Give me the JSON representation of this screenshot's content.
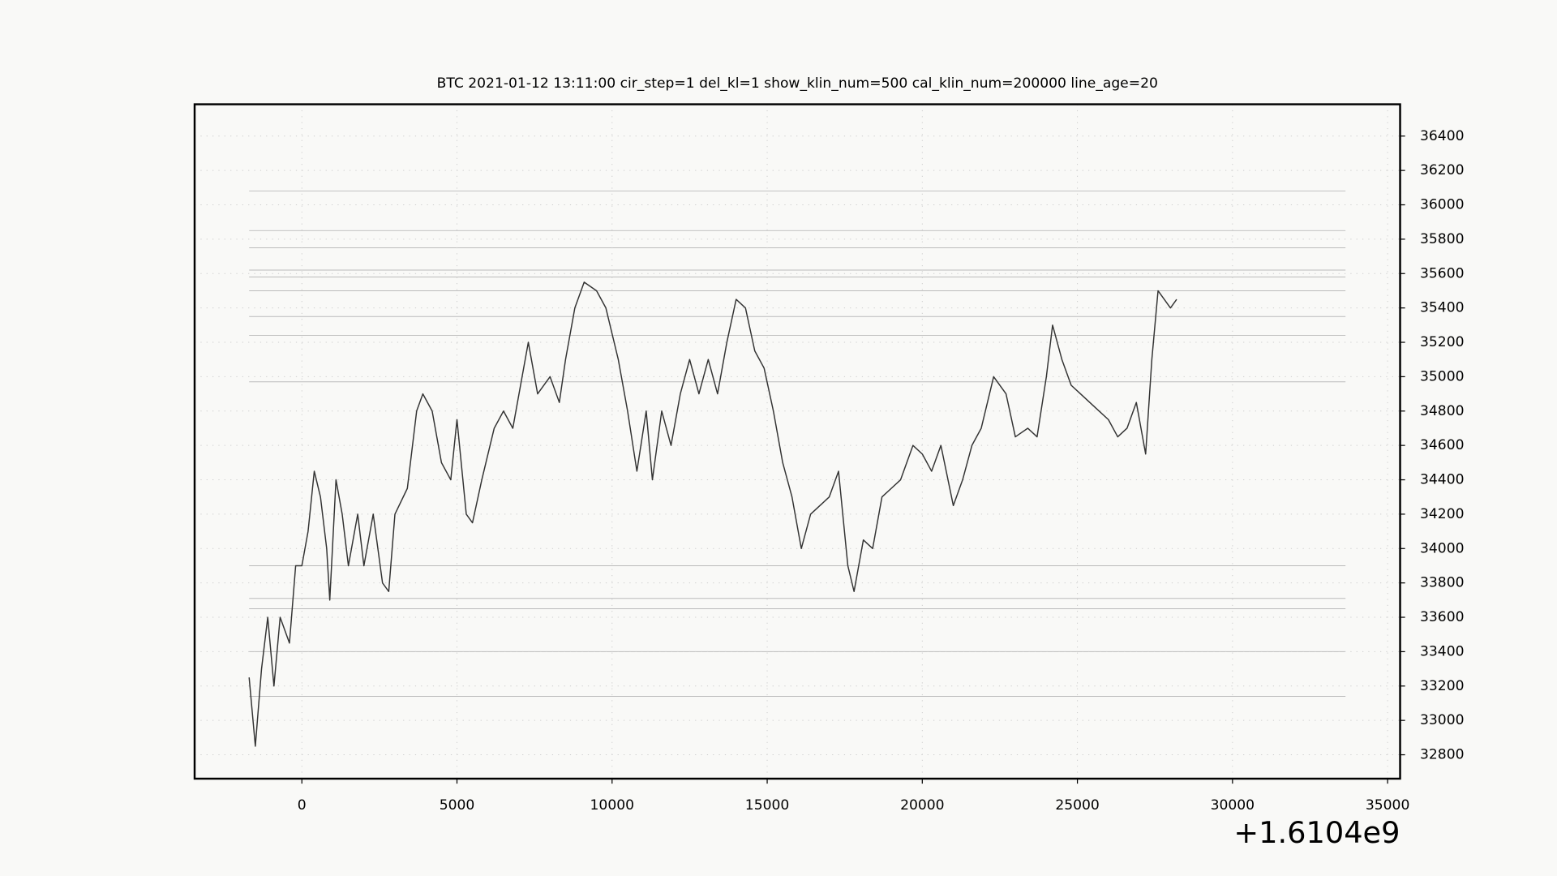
{
  "chart_data": {
    "type": "line",
    "title": "BTC    2021-01-12 13:11:00 cir_step=1 del_kl=1 show_klin_num=500 cal_klin_num=200000 line_age=20",
    "x_offset_label": "+1.6104e9",
    "x": [
      -1700,
      -1500,
      -1300,
      -1100,
      -900,
      -700,
      -400,
      -200,
      0,
      200,
      400,
      600,
      800,
      900,
      1100,
      1300,
      1500,
      1800,
      2000,
      2300,
      2600,
      2800,
      3000,
      3400,
      3700,
      3900,
      4200,
      4500,
      4800,
      5000,
      5300,
      5500,
      5800,
      6200,
      6500,
      6800,
      7100,
      7300,
      7600,
      8000,
      8300,
      8500,
      8800,
      9100,
      9500,
      9800,
      10200,
      10500,
      10800,
      11100,
      11300,
      11600,
      11900,
      12200,
      12500,
      12800,
      13100,
      13400,
      13700,
      14000,
      14300,
      14600,
      14900,
      15200,
      15500,
      15800,
      16100,
      16400,
      16700,
      17000,
      17300,
      17600,
      17800,
      18100,
      18400,
      18700,
      19000,
      19300,
      19700,
      20000,
      20300,
      20600,
      21000,
      21300,
      21600,
      21900,
      22300,
      22700,
      23000,
      23400,
      23700,
      24000,
      24200,
      24500,
      24800,
      25100,
      25400,
      25700,
      26000,
      26300,
      26600,
      26900,
      27200,
      27400,
      27600,
      27800,
      28000,
      28200
    ],
    "series": [
      {
        "color": "#333333",
        "values": [
          33250,
          32850,
          33300,
          33600,
          33200,
          33600,
          33450,
          33900,
          33900,
          34100,
          34450,
          34300,
          34000,
          33700,
          34400,
          34200,
          33900,
          34200,
          33900,
          34200,
          33800,
          33750,
          34200,
          34350,
          34800,
          34900,
          34800,
          34500,
          34400,
          34750,
          34200,
          34150,
          34400,
          34700,
          34800,
          34700,
          35000,
          35200,
          34900,
          35000,
          34850,
          35100,
          35400,
          35550,
          35500,
          35400,
          35100,
          34800,
          34450,
          34800,
          34400,
          34800,
          34600,
          34900,
          35100,
          34900,
          35100,
          34900,
          35200,
          35450,
          35400,
          35150,
          35050,
          34800,
          34500,
          34300,
          34000,
          34200,
          34250,
          34300,
          34450,
          33900,
          33750,
          34050,
          34000,
          34300,
          34350,
          34400,
          34600,
          34550,
          34450,
          34600,
          34250,
          34400,
          34600,
          34700,
          35000,
          34900,
          34650,
          34700,
          34650,
          35000,
          35300,
          35100,
          34950,
          34900,
          34850,
          34800,
          34750,
          34650,
          34700,
          34850,
          34550,
          35100,
          35500,
          35450,
          35400,
          35450
        ]
      }
    ],
    "hlines": [
      36080,
      35850,
      35750,
      35620,
      35580,
      35500,
      35350,
      35240,
      34970,
      33900,
      33710,
      33650,
      33400,
      33140
    ],
    "hline_color": "#bbbbbb",
    "xlim": [
      -3457,
      35403
    ],
    "ylim": [
      32661,
      36585
    ],
    "xticks": [
      0,
      5000,
      10000,
      15000,
      20000,
      25000,
      30000,
      35000
    ],
    "yticks": [
      32800,
      33000,
      33200,
      33400,
      33600,
      33800,
      34000,
      34200,
      34400,
      34600,
      34800,
      35000,
      35200,
      35400,
      35600,
      35800,
      36000,
      36200,
      36400
    ]
  }
}
